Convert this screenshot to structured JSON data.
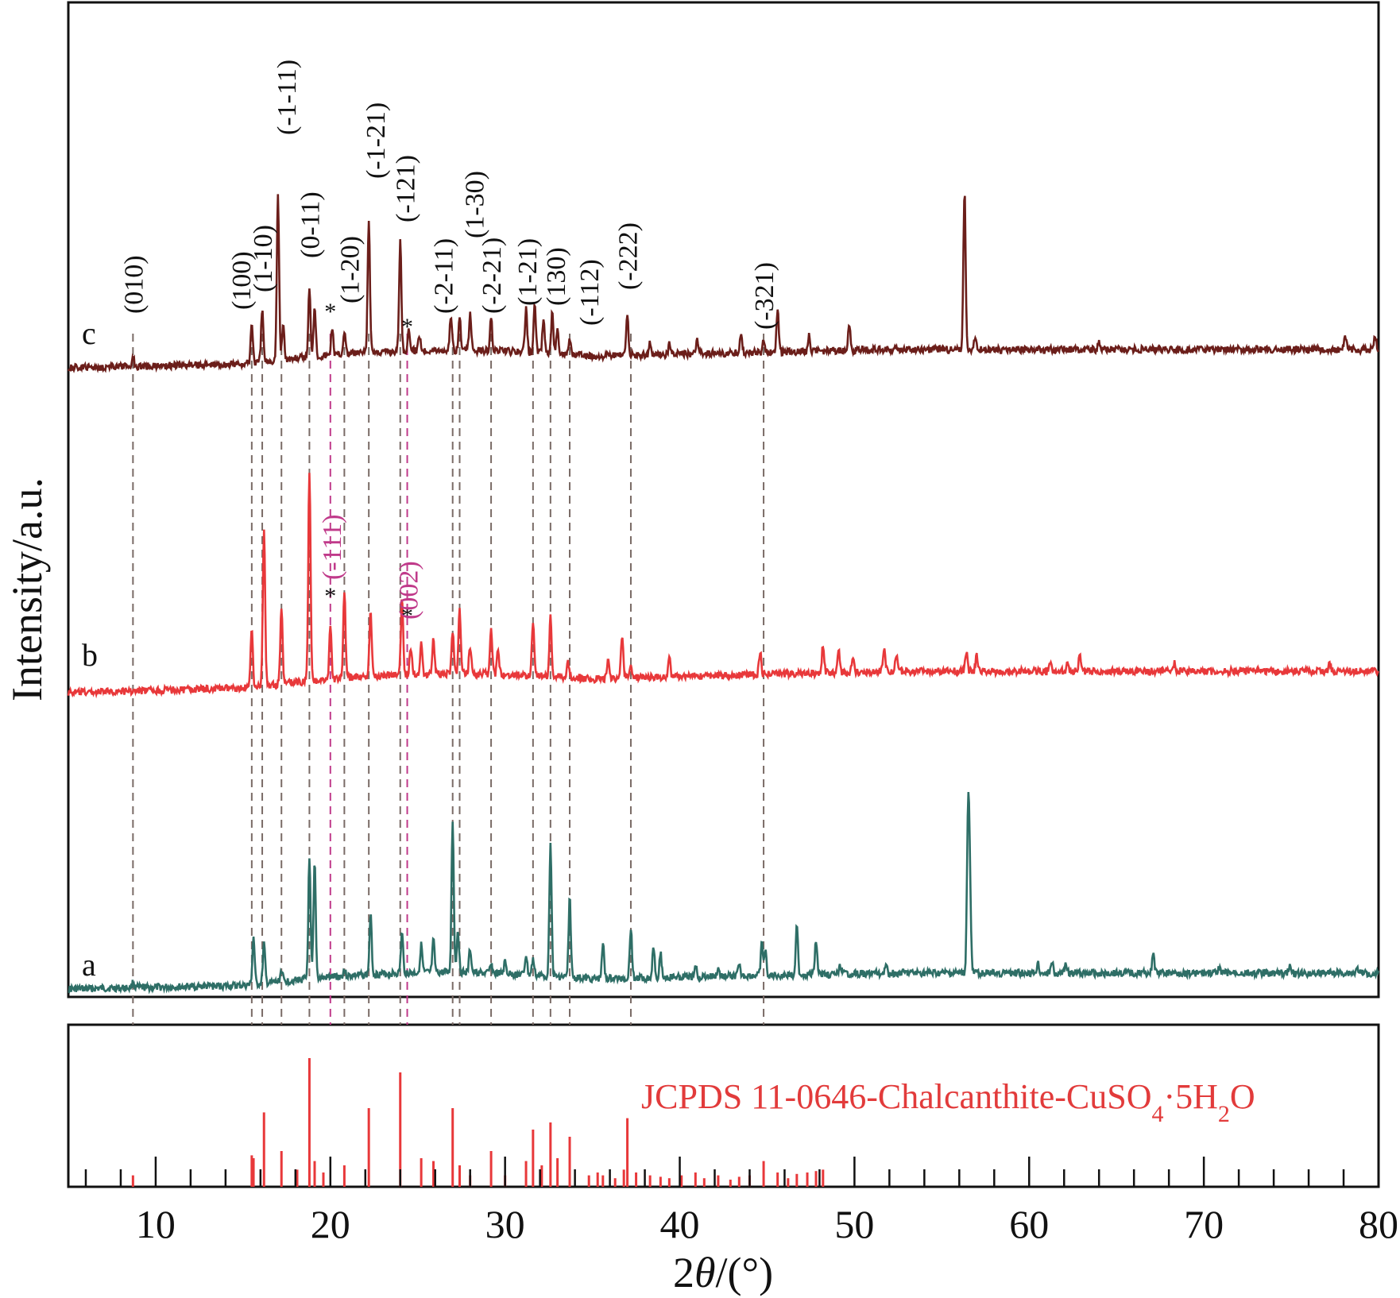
{
  "chart_data": {
    "type": "line",
    "xlabel": "2θ/(°)",
    "xlabel_prefix": "2",
    "xlabel_theta": "θ",
    "xlabel_suffix": "/(°)",
    "ylabel": "Intensity/a.u.",
    "xlim": [
      5,
      80
    ],
    "x_ticks": [
      10,
      20,
      30,
      40,
      50,
      60,
      70,
      80
    ],
    "grid": false,
    "colors": {
      "a": "#2e6e66",
      "b": "#e8383a",
      "c": "#6b1e1a",
      "reference": "#e8383a",
      "guide": "#7a6b66",
      "impurity": "#c03a8a",
      "hkl_text": "#111111"
    },
    "series": [
      {
        "name": "a",
        "baseline": 0,
        "peaks": [
          [
            8.7,
            6
          ],
          [
            15.6,
            60
          ],
          [
            16.2,
            50
          ],
          [
            17.2,
            15
          ],
          [
            18.8,
            150
          ],
          [
            19.1,
            145
          ],
          [
            20.8,
            8
          ],
          [
            22.3,
            75
          ],
          [
            24.1,
            50
          ],
          [
            25.2,
            35
          ],
          [
            25.9,
            40
          ],
          [
            27.0,
            190
          ],
          [
            27.3,
            55
          ],
          [
            28.0,
            30
          ],
          [
            29.2,
            12
          ],
          [
            30.0,
            15
          ],
          [
            31.2,
            25
          ],
          [
            31.6,
            20
          ],
          [
            32.6,
            170
          ],
          [
            33.7,
            100
          ],
          [
            35.6,
            45
          ],
          [
            37.2,
            65
          ],
          [
            38.5,
            40
          ],
          [
            38.9,
            30
          ],
          [
            40.9,
            15
          ],
          [
            42.2,
            10
          ],
          [
            43.4,
            12
          ],
          [
            44.7,
            40
          ],
          [
            44.9,
            30
          ],
          [
            46.7,
            60
          ],
          [
            47.8,
            45
          ],
          [
            49.2,
            10
          ],
          [
            51.8,
            10
          ],
          [
            56.5,
            190
          ],
          [
            56.6,
            110
          ],
          [
            60.5,
            12
          ],
          [
            61.3,
            15
          ],
          [
            62.1,
            12
          ],
          [
            67.1,
            25
          ],
          [
            70.9,
            8
          ],
          [
            74.9,
            8
          ],
          [
            78.8,
            6
          ]
        ]
      },
      {
        "name": "b",
        "baseline": 0,
        "peaks": [
          [
            15.5,
            75
          ],
          [
            16.2,
            200
          ],
          [
            17.2,
            95
          ],
          [
            18.8,
            265
          ],
          [
            20.0,
            65
          ],
          [
            20.8,
            110
          ],
          [
            22.3,
            80
          ],
          [
            24.1,
            95
          ],
          [
            24.6,
            35
          ],
          [
            25.2,
            40
          ],
          [
            25.9,
            45
          ],
          [
            27.0,
            55
          ],
          [
            27.4,
            80
          ],
          [
            28.0,
            35
          ],
          [
            29.2,
            55
          ],
          [
            29.6,
            30
          ],
          [
            31.6,
            70
          ],
          [
            32.6,
            75
          ],
          [
            33.6,
            20
          ],
          [
            35.9,
            25
          ],
          [
            36.7,
            55
          ],
          [
            37.2,
            20
          ],
          [
            39.4,
            25
          ],
          [
            44.6,
            28
          ],
          [
            48.2,
            35
          ],
          [
            49.1,
            30
          ],
          [
            49.9,
            20
          ],
          [
            51.7,
            30
          ],
          [
            52.4,
            20
          ],
          [
            56.4,
            25
          ],
          [
            57.0,
            20
          ],
          [
            61.2,
            12
          ],
          [
            62.2,
            15
          ],
          [
            62.9,
            20
          ],
          [
            68.3,
            10
          ],
          [
            77.2,
            10
          ]
        ]
      },
      {
        "name": "c",
        "baseline": 0,
        "peaks": [
          [
            8.7,
            12
          ],
          [
            15.5,
            50
          ],
          [
            16.1,
            65
          ],
          [
            17.0,
            210
          ],
          [
            17.3,
            45
          ],
          [
            18.8,
            85
          ],
          [
            19.1,
            65
          ],
          [
            20.1,
            35
          ],
          [
            20.8,
            30
          ],
          [
            22.2,
            165
          ],
          [
            24.0,
            140
          ],
          [
            24.5,
            25
          ],
          [
            25.1,
            20
          ],
          [
            26.9,
            45
          ],
          [
            27.4,
            40
          ],
          [
            28.0,
            45
          ],
          [
            29.2,
            40
          ],
          [
            31.2,
            55
          ],
          [
            31.7,
            60
          ],
          [
            32.2,
            45
          ],
          [
            32.7,
            50
          ],
          [
            33.0,
            35
          ],
          [
            33.7,
            20
          ],
          [
            37.0,
            50
          ],
          [
            38.3,
            15
          ],
          [
            39.4,
            12
          ],
          [
            41.0,
            20
          ],
          [
            43.5,
            25
          ],
          [
            44.8,
            15
          ],
          [
            45.6,
            55
          ],
          [
            47.4,
            20
          ],
          [
            49.7,
            35
          ],
          [
            56.3,
            200
          ],
          [
            56.9,
            15
          ],
          [
            64.0,
            10
          ],
          [
            78.1,
            15
          ],
          [
            79.8,
            18
          ]
        ]
      }
    ],
    "hkl_labels": [
      {
        "hkl": "(010)",
        "x": 8.7
      },
      {
        "hkl": "(100)",
        "x": 15.5
      },
      {
        "hkl": "(1-10)",
        "x": 16.1
      },
      {
        "hkl": "(-1-11)",
        "x": 17.0
      },
      {
        "hkl": "(0-11)",
        "x": 18.8
      },
      {
        "hkl": "(1-20)",
        "x": 20.8
      },
      {
        "hkl": "(-1-21)",
        "x": 22.2
      },
      {
        "hkl": "(-121)",
        "x": 24.0
      },
      {
        "hkl": "(-2-11)",
        "x": 27.0
      },
      {
        "hkl": "(1-30)",
        "x": 27.4
      },
      {
        "hkl": "(-2-21)",
        "x": 29.2
      },
      {
        "hkl": "(1-21)",
        "x": 31.6
      },
      {
        "hkl": "(130)",
        "x": 32.6
      },
      {
        "hkl": "(-112)",
        "x": 33.7
      },
      {
        "hkl": "(-222)",
        "x": 37.0
      },
      {
        "hkl": "(-321)",
        "x": 44.8
      }
    ],
    "impurity_labels": [
      {
        "hkl": "(-111)",
        "x": 20.0,
        "marker": "*"
      },
      {
        "hkl": "(002)",
        "x": 24.4,
        "marker": "*"
      }
    ],
    "reference": {
      "label": "JCPDS 11-0646-Chalcanthite-CuSO",
      "label_sub1": "4",
      "label_mid": "·5H",
      "label_sub2": "2",
      "label_end": "O",
      "peaks": [
        [
          8.7,
          8
        ],
        [
          15.5,
          22
        ],
        [
          15.6,
          20
        ],
        [
          16.2,
          52
        ],
        [
          17.2,
          25
        ],
        [
          18.1,
          12
        ],
        [
          18.8,
          90
        ],
        [
          19.1,
          18
        ],
        [
          19.6,
          10
        ],
        [
          20.8,
          15
        ],
        [
          22.2,
          55
        ],
        [
          24.0,
          80
        ],
        [
          25.2,
          20
        ],
        [
          25.9,
          18
        ],
        [
          27.0,
          55
        ],
        [
          27.4,
          15
        ],
        [
          28.0,
          8
        ],
        [
          29.2,
          25
        ],
        [
          30.0,
          8
        ],
        [
          31.2,
          18
        ],
        [
          31.6,
          40
        ],
        [
          32.1,
          15
        ],
        [
          32.6,
          45
        ],
        [
          33.0,
          20
        ],
        [
          33.7,
          35
        ],
        [
          34.8,
          8
        ],
        [
          35.3,
          10
        ],
        [
          35.6,
          8
        ],
        [
          36.3,
          6
        ],
        [
          36.8,
          12
        ],
        [
          37.0,
          48
        ],
        [
          37.5,
          10
        ],
        [
          38.3,
          8
        ],
        [
          38.9,
          7
        ],
        [
          39.4,
          6
        ],
        [
          40.1,
          8
        ],
        [
          40.9,
          10
        ],
        [
          41.4,
          6
        ],
        [
          42.2,
          8
        ],
        [
          42.9,
          5
        ],
        [
          43.4,
          7
        ],
        [
          44.0,
          8
        ],
        [
          44.8,
          18
        ],
        [
          45.6,
          10
        ],
        [
          46.2,
          6
        ],
        [
          46.7,
          9
        ],
        [
          47.3,
          10
        ],
        [
          47.8,
          11
        ],
        [
          48.2,
          12
        ]
      ]
    },
    "trace_labels": [
      "a",
      "b",
      "c"
    ],
    "guide_positions": [
      8.7,
      15.5,
      16.1,
      17.2,
      18.8,
      20.0,
      20.8,
      22.2,
      24.0,
      24.4,
      27.0,
      27.4,
      29.2,
      31.6,
      32.6,
      33.7,
      37.2,
      44.8
    ]
  }
}
